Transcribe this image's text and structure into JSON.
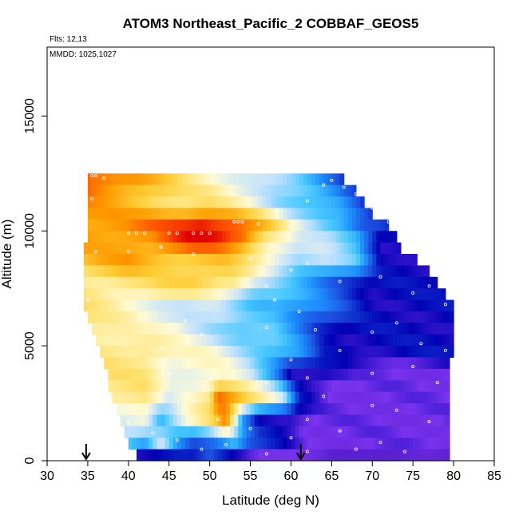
{
  "chart_data": {
    "type": "heatmap",
    "title": "ATOM3 Northeast_Pacific_2 COBBAF_GEOS5",
    "annotations": {
      "flights": "Flts: 12,13",
      "dates": "MMDD: 1025,1027"
    },
    "xlabel": "Latitude (deg N)",
    "ylabel": "Altitude (m)",
    "xlim": [
      30,
      85
    ],
    "ylim": [
      0,
      18000
    ],
    "xticks": [
      30,
      35,
      40,
      45,
      50,
      55,
      60,
      65,
      70,
      75,
      80,
      85
    ],
    "yticks": [
      0,
      5000,
      10000,
      15000
    ],
    "grid": false,
    "colormap": [
      "#5a1fd0",
      "#7a33ee",
      "#0000b4",
      "#1c4fe0",
      "#1e90ff",
      "#46c8ff",
      "#bde0ff",
      "#fffbd6",
      "#ffe680",
      "#ffcc33",
      "#ff9a00",
      "#ff5500",
      "#e00000"
    ],
    "curtain": {
      "altitude_top": 12500,
      "bin_height": 500,
      "lat_step": 0.5,
      "lat_ranges": [
        [
          35,
          66.5
        ],
        [
          35,
          68
        ],
        [
          35,
          69
        ],
        [
          35,
          70
        ],
        [
          35,
          72
        ],
        [
          35,
          73
        ],
        [
          34.5,
          73.5
        ],
        [
          34.5,
          75.5
        ],
        [
          34.5,
          77
        ],
        [
          34.5,
          78
        ],
        [
          34.5,
          79
        ],
        [
          34.5,
          80
        ],
        [
          35,
          80
        ],
        [
          35.5,
          80
        ],
        [
          36,
          80
        ],
        [
          36.5,
          80
        ],
        [
          37,
          79.5
        ],
        [
          37.5,
          79.5
        ],
        [
          37.5,
          79.5
        ],
        [
          38,
          79.5
        ],
        [
          38.5,
          79.5
        ],
        [
          39,
          79.5
        ],
        [
          39.5,
          79.5
        ],
        [
          40,
          79.5
        ],
        [
          41,
          79.5
        ]
      ],
      "control_points": [
        {
          "alt": 12250,
          "pts": [
            [
              35,
              11
            ],
            [
              41,
              10
            ],
            [
              47,
              8
            ],
            [
              52,
              7
            ],
            [
              57,
              6
            ],
            [
              61,
              5
            ],
            [
              64,
              4
            ],
            [
              66.5,
              3
            ]
          ]
        },
        {
          "alt": 11250,
          "pts": [
            [
              35,
              10
            ],
            [
              42,
              9
            ],
            [
              47,
              8
            ],
            [
              50,
              8
            ],
            [
              55,
              7
            ],
            [
              58,
              6
            ],
            [
              62,
              5
            ],
            [
              66,
              4
            ],
            [
              70,
              2
            ]
          ]
        },
        {
          "alt": 10250,
          "pts": [
            [
              35,
              10
            ],
            [
              40,
              10
            ],
            [
              45,
              11
            ],
            [
              49,
              12
            ],
            [
              53,
              11
            ],
            [
              57,
              9
            ],
            [
              60,
              7
            ],
            [
              63,
              6
            ],
            [
              66,
              5
            ],
            [
              69,
              3
            ],
            [
              73,
              2
            ]
          ]
        },
        {
          "alt": 9750,
          "pts": [
            [
              35,
              10
            ],
            [
              43,
              10
            ],
            [
              48,
              12
            ],
            [
              51,
              12
            ],
            [
              54,
              11
            ],
            [
              57,
              8
            ],
            [
              61,
              6
            ],
            [
              65,
              6
            ],
            [
              68,
              5
            ],
            [
              71,
              2
            ],
            [
              75,
              2
            ]
          ]
        },
        {
          "alt": 8750,
          "pts": [
            [
              34.5,
              9
            ],
            [
              40,
              10
            ],
            [
              47,
              9
            ],
            [
              52,
              9
            ],
            [
              55,
              8
            ],
            [
              58,
              7
            ],
            [
              61,
              6
            ],
            [
              64,
              6
            ],
            [
              68,
              5
            ],
            [
              71,
              2
            ],
            [
              78,
              2
            ]
          ]
        },
        {
          "alt": 7750,
          "pts": [
            [
              34.5,
              8
            ],
            [
              42,
              8
            ],
            [
              48,
              9
            ],
            [
              53,
              8
            ],
            [
              56,
              6
            ],
            [
              59,
              5
            ],
            [
              63,
              4
            ],
            [
              67,
              3
            ],
            [
              70,
              2
            ],
            [
              80,
              2
            ]
          ]
        },
        {
          "alt": 6750,
          "pts": [
            [
              34.5,
              8
            ],
            [
              42,
              7
            ],
            [
              47,
              6
            ],
            [
              51,
              6
            ],
            [
              55,
              5
            ],
            [
              58,
              5
            ],
            [
              62,
              4
            ],
            [
              66,
              3
            ],
            [
              70,
              2
            ],
            [
              80,
              2
            ]
          ]
        },
        {
          "alt": 5750,
          "pts": [
            [
              35,
              8
            ],
            [
              42,
              7
            ],
            [
              46,
              7
            ],
            [
              50,
              6
            ],
            [
              54,
              5
            ],
            [
              58,
              5
            ],
            [
              63,
              3
            ],
            [
              67,
              2
            ],
            [
              72,
              2
            ],
            [
              80,
              2
            ]
          ]
        },
        {
          "alt": 4750,
          "pts": [
            [
              36,
              8
            ],
            [
              42,
              8
            ],
            [
              46,
              7
            ],
            [
              50,
              7
            ],
            [
              54,
              6
            ],
            [
              58,
              5
            ],
            [
              61,
              4
            ],
            [
              64,
              2
            ],
            [
              68,
              2
            ],
            [
              80,
              2
            ]
          ]
        },
        {
          "alt": 3750,
          "pts": [
            [
              37,
              8
            ],
            [
              42,
              8
            ],
            [
              45,
              7
            ],
            [
              49,
              7
            ],
            [
              52,
              7
            ],
            [
              55,
              6
            ],
            [
              58,
              4
            ],
            [
              60,
              2
            ],
            [
              64,
              2
            ],
            [
              68,
              1
            ],
            [
              80,
              1
            ]
          ]
        },
        {
          "alt": 2750,
          "pts": [
            [
              37.5,
              8
            ],
            [
              42,
              8
            ],
            [
              45,
              6
            ],
            [
              48,
              7
            ],
            [
              50,
              8
            ],
            [
              51,
              11
            ],
            [
              53,
              10
            ],
            [
              56,
              8
            ],
            [
              59,
              6
            ],
            [
              61,
              2
            ],
            [
              65,
              1
            ],
            [
              80,
              1
            ]
          ]
        },
        {
          "alt": 1750,
          "pts": [
            [
              38.5,
              6
            ],
            [
              42,
              7
            ],
            [
              44,
              5
            ],
            [
              47,
              7
            ],
            [
              50,
              8
            ],
            [
              52,
              10
            ],
            [
              54,
              4
            ],
            [
              56,
              2
            ],
            [
              60,
              2
            ],
            [
              63,
              1
            ],
            [
              80,
              1
            ]
          ]
        },
        {
          "alt": 750,
          "pts": [
            [
              40,
              5
            ],
            [
              42,
              4
            ],
            [
              44,
              6
            ],
            [
              46,
              4
            ],
            [
              48,
              3
            ],
            [
              51,
              4
            ],
            [
              53,
              5
            ],
            [
              55,
              3
            ],
            [
              58,
              2
            ],
            [
              62,
              1
            ],
            [
              80,
              1
            ]
          ]
        },
        {
          "alt": 250,
          "pts": [
            [
              41,
              2
            ],
            [
              45,
              2
            ],
            [
              48,
              2
            ],
            [
              50,
              3
            ],
            [
              54,
              2
            ],
            [
              57,
              1
            ],
            [
              65,
              0
            ],
            [
              79.5,
              0
            ]
          ]
        }
      ]
    },
    "sample_points": {
      "marker": "open-circle",
      "points": [
        [
          35.5,
          12400
        ],
        [
          36,
          12400
        ],
        [
          37,
          12300
        ],
        [
          35.5,
          11400
        ],
        [
          40,
          9900
        ],
        [
          41,
          9900
        ],
        [
          42,
          9900
        ],
        [
          45,
          9900
        ],
        [
          46,
          9900
        ],
        [
          48,
          9900
        ],
        [
          49,
          9900
        ],
        [
          50,
          9900
        ],
        [
          53,
          10400
        ],
        [
          53.5,
          10400
        ],
        [
          54,
          10400
        ],
        [
          56,
          10300
        ],
        [
          60,
          10200
        ],
        [
          62,
          11300
        ],
        [
          64,
          12000
        ],
        [
          65,
          12200
        ],
        [
          66.5,
          11900
        ],
        [
          68,
          11600
        ],
        [
          70,
          11000
        ],
        [
          72,
          10400
        ],
        [
          36,
          9100
        ],
        [
          40,
          9100
        ],
        [
          44,
          9300
        ],
        [
          48,
          9000
        ],
        [
          55,
          8800
        ],
        [
          60,
          8300
        ],
        [
          62,
          8600
        ],
        [
          57,
          7600
        ],
        [
          58,
          7000
        ],
        [
          61,
          6500
        ],
        [
          66,
          7800
        ],
        [
          71,
          8000
        ],
        [
          75,
          7300
        ],
        [
          77,
          7600
        ],
        [
          79,
          6800
        ],
        [
          35,
          7000
        ],
        [
          47,
          6100
        ],
        [
          57,
          5800
        ],
        [
          63,
          5700
        ],
        [
          70,
          5600
        ],
        [
          73,
          6000
        ],
        [
          76,
          5100
        ],
        [
          79,
          4800
        ],
        [
          49,
          5500
        ],
        [
          44,
          4900
        ],
        [
          60,
          4400
        ],
        [
          66,
          4800
        ],
        [
          70,
          3800
        ],
        [
          75,
          4100
        ],
        [
          78,
          3400
        ],
        [
          45,
          3800
        ],
        [
          52,
          3900
        ],
        [
          57,
          3400
        ],
        [
          62,
          3600
        ],
        [
          64,
          2800
        ],
        [
          70,
          2400
        ],
        [
          73,
          2200
        ],
        [
          77,
          1700
        ],
        [
          44,
          2900
        ],
        [
          48,
          2600
        ],
        [
          51,
          1800
        ],
        [
          55,
          1400
        ],
        [
          60,
          1000
        ],
        [
          62,
          1800
        ],
        [
          66,
          1300
        ],
        [
          71,
          800
        ],
        [
          74,
          400
        ],
        [
          40,
          1700
        ],
        [
          43,
          1200
        ],
        [
          46,
          900
        ],
        [
          49,
          500
        ],
        [
          52,
          700
        ],
        [
          57,
          300
        ],
        [
          62,
          400
        ],
        [
          68,
          500
        ]
      ]
    },
    "flight_arrows": [
      34.8,
      61.2
    ]
  }
}
